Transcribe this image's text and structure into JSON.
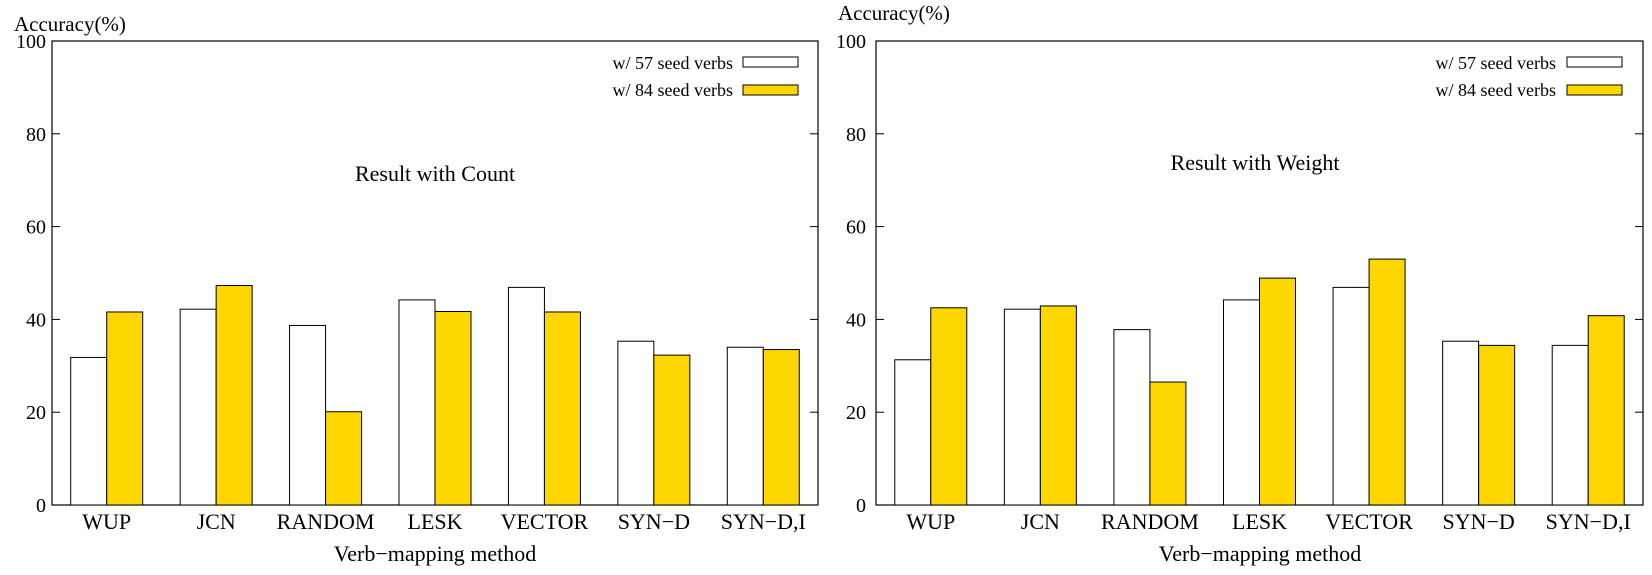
{
  "chart_data": [
    {
      "type": "bar",
      "title": "Result with Count",
      "xlabel": "Verb−mapping method",
      "ylabel": "Accuracy(%)",
      "ylim": [
        0,
        100
      ],
      "yticks": [
        "0",
        "20",
        "40",
        "60",
        "80",
        "100"
      ],
      "categories": [
        "WUP",
        "JCN",
        "RANDOM",
        "LESK",
        "VECTOR",
        "SYN−D",
        "SYN−D,I"
      ],
      "series": [
        {
          "name": "w/ 57 seed verbs",
          "values": [
            31.8,
            42.2,
            38.7,
            44.2,
            46.9,
            35.3,
            34.0
          ],
          "color": "#ffffff"
        },
        {
          "name": "w/ 84 seed verbs",
          "values": [
            41.6,
            47.3,
            20.1,
            41.7,
            41.6,
            32.3,
            33.5
          ],
          "color": "#ffd700"
        }
      ],
      "legend_position": "top-right",
      "grid": false
    },
    {
      "type": "bar",
      "title": "Result with Weight",
      "xlabel": "Verb−mapping method",
      "ylabel": "Accuracy(%)",
      "ylim": [
        0,
        100
      ],
      "yticks": [
        "0",
        "20",
        "40",
        "60",
        "80",
        "100"
      ],
      "categories": [
        "WUP",
        "JCN",
        "RANDOM",
        "LESK",
        "VECTOR",
        "SYN−D",
        "SYN−D,I"
      ],
      "series": [
        {
          "name": "w/ 57 seed verbs",
          "values": [
            31.3,
            42.2,
            37.8,
            44.2,
            46.9,
            35.3,
            34.4
          ],
          "color": "#ffffff"
        },
        {
          "name": "w/ 84 seed verbs",
          "values": [
            42.5,
            42.9,
            26.5,
            48.9,
            53.0,
            34.4,
            40.8
          ],
          "color": "#ffd700"
        }
      ],
      "legend_position": "top-right",
      "grid": false
    }
  ]
}
